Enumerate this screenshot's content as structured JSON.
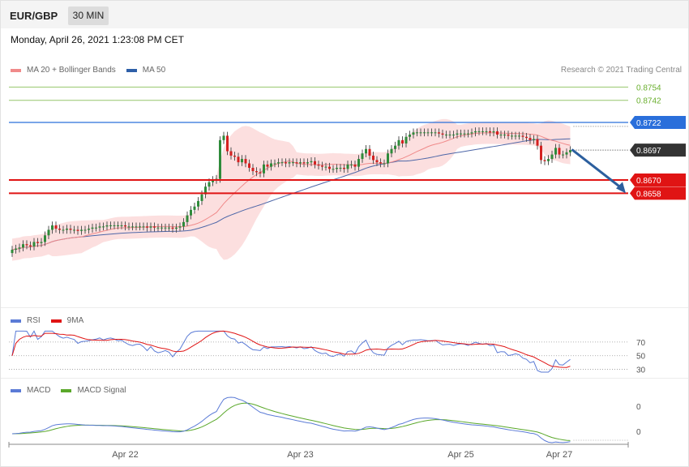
{
  "header": {
    "symbol": "EUR/GBP",
    "timeframe": "30 MIN",
    "datetime": "Monday, April 26, 2021 1:23:08 PM CET"
  },
  "credit": "Research © 2021 Trading Central",
  "colors": {
    "bb_fill": "#fbd9d9",
    "ma20": "#f08a8a",
    "ma50": "#4e67a8",
    "up": "#2e8b3a",
    "down": "#d42020",
    "green_level": "#6aaf2e",
    "blue_level": "#2a6fdb",
    "red_level": "#e01414",
    "price": "#333333",
    "arrow": "#2c5f9e",
    "rsi": "#5b7bd6",
    "rsi_ma": "#e01414",
    "macd": "#5b7bd6",
    "macd_signal": "#5aa82a"
  },
  "chart_data": [
    {
      "type": "candlestick",
      "name": "price",
      "legend": [
        {
          "label": "MA 20 + Bollinger Bands",
          "color": "#f08a8a"
        },
        {
          "label": "MA 50",
          "color": "#2e5fa8"
        }
      ],
      "ylim": [
        0.8555,
        0.8785
      ],
      "levels": [
        {
          "value": 0.8754,
          "label": "0.8754",
          "kind": "green"
        },
        {
          "value": 0.8742,
          "label": "0.8742",
          "kind": "green"
        },
        {
          "value": 0.8722,
          "label": "0.8722",
          "kind": "resistance"
        },
        {
          "value": 0.8697,
          "label": "0.8697",
          "kind": "price"
        },
        {
          "value": 0.867,
          "label": "0.8670",
          "kind": "support"
        },
        {
          "value": 0.8658,
          "label": "0.8658",
          "kind": "support"
        }
      ],
      "forecast_target": 0.8658,
      "x_tick_labels": [
        {
          "label": "Apr 22",
          "index": 31
        },
        {
          "label": "Apr 23",
          "index": 79
        },
        {
          "label": "Apr 25",
          "index": 123
        },
        {
          "label": "Apr 27",
          "index": 150
        }
      ],
      "closes": [
        0.8607,
        0.8608,
        0.8609,
        0.8612,
        0.8611,
        0.861,
        0.8614,
        0.8613,
        0.8614,
        0.862,
        0.8625,
        0.8629,
        0.8626,
        0.8625,
        0.8625,
        0.8626,
        0.8625,
        0.8625,
        0.8624,
        0.8625,
        0.8625,
        0.8626,
        0.8627,
        0.8627,
        0.8628,
        0.8628,
        0.8629,
        0.8629,
        0.8629,
        0.8629,
        0.8629,
        0.8628,
        0.8628,
        0.8628,
        0.8628,
        0.8628,
        0.8628,
        0.8627,
        0.8628,
        0.8627,
        0.8627,
        0.8627,
        0.8627,
        0.8627,
        0.8626,
        0.8627,
        0.8628,
        0.8632,
        0.8638,
        0.8643,
        0.8646,
        0.8651,
        0.8657,
        0.8664,
        0.8668,
        0.867,
        0.8671,
        0.8706,
        0.871,
        0.8696,
        0.8692,
        0.8691,
        0.8686,
        0.8689,
        0.8685,
        0.8681,
        0.8678,
        0.8677,
        0.8676,
        0.8684,
        0.8682,
        0.8685,
        0.8685,
        0.8686,
        0.8686,
        0.8685,
        0.8686,
        0.8686,
        0.8685,
        0.8686,
        0.8685,
        0.8686,
        0.8687,
        0.8684,
        0.8683,
        0.8682,
        0.8682,
        0.868,
        0.868,
        0.8681,
        0.8681,
        0.868,
        0.8684,
        0.8684,
        0.8682,
        0.8689,
        0.8694,
        0.8698,
        0.8692,
        0.8688,
        0.8686,
        0.8685,
        0.8685,
        0.8694,
        0.8698,
        0.8701,
        0.8706,
        0.8703,
        0.8709,
        0.8711,
        0.8713,
        0.8713,
        0.8713,
        0.8713,
        0.8713,
        0.8713,
        0.8713,
        0.8712,
        0.8711,
        0.8711,
        0.8711,
        0.8711,
        0.8712,
        0.8712,
        0.8712,
        0.8712,
        0.8713,
        0.8714,
        0.8714,
        0.8714,
        0.8714,
        0.8713,
        0.8714,
        0.8711,
        0.8711,
        0.8711,
        0.871,
        0.871,
        0.871,
        0.871,
        0.8709,
        0.8708,
        0.8706,
        0.8707,
        0.8701,
        0.8688,
        0.8687,
        0.8689,
        0.8693,
        0.8699,
        0.8693,
        0.8693,
        0.8695,
        0.8697
      ]
    },
    {
      "type": "line",
      "name": "RSI",
      "legend": [
        {
          "label": "RSI",
          "color": "#5b7bd6"
        },
        {
          "label": "9MA",
          "color": "#e01414"
        }
      ],
      "ylim": [
        20,
        90
      ],
      "levels": [
        {
          "value": 70,
          "label": "70"
        },
        {
          "value": 50,
          "label": "50"
        },
        {
          "value": 30,
          "label": "30"
        }
      ]
    },
    {
      "type": "line",
      "name": "MACD",
      "legend": [
        {
          "label": "MACD",
          "color": "#5b7bd6"
        },
        {
          "label": "MACD Signal",
          "color": "#5aa82a"
        }
      ],
      "axis_labels": [
        "0",
        "0"
      ]
    }
  ]
}
